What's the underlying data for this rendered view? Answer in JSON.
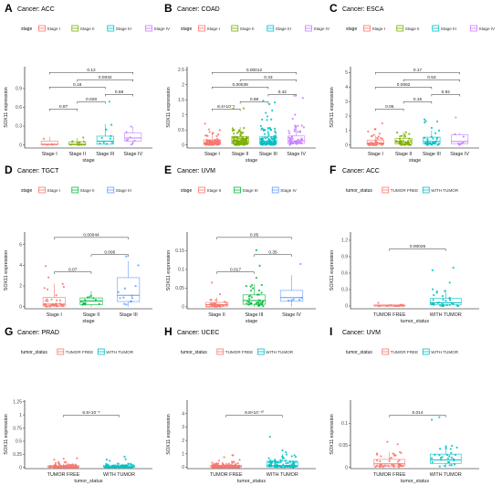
{
  "chart_data": [
    {
      "type": "box",
      "panel": "A",
      "title": "Cancer: ACC",
      "legend_title": "stage",
      "xlabel": "stage",
      "ylabel": "SOX11 expression",
      "ylim": [
        -0.05,
        1.25
      ],
      "yticks": [
        0.0,
        0.3,
        0.6,
        0.9
      ],
      "groups": [
        {
          "name": "Stage I",
          "color": "#F8766D",
          "q1": 0.0,
          "median": 0.01,
          "q3": 0.06,
          "whisker_low": 0.0,
          "whisker_high": 0.13
        },
        {
          "name": "Stage II",
          "color": "#7CAE00",
          "q1": 0.0,
          "median": 0.01,
          "q3": 0.05,
          "whisker_low": 0.0,
          "whisker_high": 0.11
        },
        {
          "name": "Stage III",
          "color": "#00BFC4",
          "q1": 0.01,
          "median": 0.06,
          "q3": 0.14,
          "whisker_low": 0.0,
          "whisker_high": 0.33
        },
        {
          "name": "Stage IV",
          "color": "#C77CFF",
          "q1": 0.06,
          "median": 0.11,
          "q3": 0.19,
          "whisker_low": 0.0,
          "whisker_high": 0.29
        }
      ],
      "comparisons": [
        {
          "a": 0,
          "b": 1,
          "label": "0.87"
        },
        {
          "a": 0,
          "b": 2,
          "label": "0.18"
        },
        {
          "a": 0,
          "b": 3,
          "label": "0.12"
        },
        {
          "a": 1,
          "b": 2,
          "label": "0.028"
        },
        {
          "a": 1,
          "b": 3,
          "label": "0.0032"
        },
        {
          "a": 2,
          "b": 3,
          "label": "0.58"
        }
      ]
    },
    {
      "type": "box",
      "panel": "B",
      "title": "Cancer: COAD",
      "legend_title": "stage",
      "xlabel": "stage",
      "ylabel": "SOX11 expression",
      "ylim": [
        -0.1,
        2.6
      ],
      "yticks": [
        0.0,
        0.5,
        1.0,
        1.5,
        2.0,
        2.5
      ],
      "groups": [
        {
          "name": "Stage I",
          "color": "#F8766D",
          "q1": 0.03,
          "median": 0.08,
          "q3": 0.17,
          "whisker_low": 0.0,
          "whisker_high": 0.38
        },
        {
          "name": "Stage II",
          "color": "#7CAE00",
          "q1": 0.04,
          "median": 0.12,
          "q3": 0.28,
          "whisker_low": 0.0,
          "whisker_high": 0.6
        },
        {
          "name": "Stage III",
          "color": "#00BFC4",
          "q1": 0.04,
          "median": 0.13,
          "q3": 0.27,
          "whisker_low": 0.0,
          "whisker_high": 0.58
        },
        {
          "name": "Stage IV",
          "color": "#C77CFF",
          "q1": 0.05,
          "median": 0.14,
          "q3": 0.3,
          "whisker_low": 0.0,
          "whisker_high": 0.65
        }
      ],
      "comparisons": [
        {
          "a": 0,
          "b": 1,
          "label": "8.4×10⁻⁵"
        },
        {
          "a": 0,
          "b": 2,
          "label": "0.00039"
        },
        {
          "a": 0,
          "b": 3,
          "label": "0.00012"
        },
        {
          "a": 1,
          "b": 2,
          "label": "0.98"
        },
        {
          "a": 1,
          "b": 3,
          "label": "0.43"
        },
        {
          "a": 2,
          "b": 3,
          "label": "0.42"
        }
      ]
    },
    {
      "type": "box",
      "panel": "C",
      "title": "Cancer: ESCA",
      "legend_title": "stage",
      "xlabel": "stage",
      "ylabel": "SOX11 expression",
      "ylim": [
        -0.2,
        5.4
      ],
      "yticks": [
        0,
        1,
        2,
        3,
        4,
        5
      ],
      "groups": [
        {
          "name": "Stage I",
          "color": "#F8766D",
          "q1": 0.05,
          "median": 0.15,
          "q3": 0.35,
          "whisker_low": 0.0,
          "whisker_high": 0.65
        },
        {
          "name": "Stage II",
          "color": "#7CAE00",
          "q1": 0.08,
          "median": 0.2,
          "q3": 0.45,
          "whisker_low": 0.0,
          "whisker_high": 0.9
        },
        {
          "name": "Stage III",
          "color": "#00BFC4",
          "q1": 0.1,
          "median": 0.25,
          "q3": 0.55,
          "whisker_low": 0.0,
          "whisker_high": 1.0
        },
        {
          "name": "Stage IV",
          "color": "#C77CFF",
          "q1": 0.1,
          "median": 0.25,
          "q3": 0.7,
          "whisker_low": 0.0,
          "whisker_high": 0.85
        }
      ],
      "comparisons": [
        {
          "a": 0,
          "b": 1,
          "label": "0.05"
        },
        {
          "a": 0,
          "b": 2,
          "label": "0.0062"
        },
        {
          "a": 0,
          "b": 3,
          "label": "0.17"
        },
        {
          "a": 1,
          "b": 2,
          "label": "0.15"
        },
        {
          "a": 1,
          "b": 3,
          "label": "0.53"
        },
        {
          "a": 2,
          "b": 3,
          "label": "0.92"
        }
      ]
    },
    {
      "type": "box",
      "panel": "D",
      "title": "Cancer: TGCT",
      "legend_title": "stage",
      "xlabel": "stage",
      "ylabel": "SOX11 expression",
      "ylim": [
        -0.2,
        7.2
      ],
      "yticks": [
        0,
        2,
        4,
        6
      ],
      "groups": [
        {
          "name": "Stage I",
          "color": "#F8766D",
          "q1": 0.05,
          "median": 0.25,
          "q3": 0.9,
          "whisker_low": 0.0,
          "whisker_high": 2.2
        },
        {
          "name": "Stage II",
          "color": "#00BA38",
          "q1": 0.2,
          "median": 0.55,
          "q3": 0.85,
          "whisker_low": 0.0,
          "whisker_high": 1.5
        },
        {
          "name": "Stage III",
          "color": "#619CFF",
          "q1": 0.5,
          "median": 1.1,
          "q3": 2.8,
          "whisker_low": 0.0,
          "whisker_high": 4.4
        }
      ],
      "comparisons": [
        {
          "a": 0,
          "b": 1,
          "label": "0.07"
        },
        {
          "a": 0,
          "b": 2,
          "label": "0.00044"
        },
        {
          "a": 1,
          "b": 2,
          "label": "0.095"
        }
      ]
    },
    {
      "type": "box",
      "panel": "E",
      "title": "Cancer: UVM",
      "legend_title": "stage",
      "xlabel": "stage",
      "ylabel": "SOX11 expression",
      "ylim": [
        -0.005,
        0.2
      ],
      "yticks": [
        0.0,
        0.05,
        0.1,
        0.15
      ],
      "groups": [
        {
          "name": "Stage II",
          "color": "#F8766D",
          "q1": 0.002,
          "median": 0.006,
          "q3": 0.012,
          "whisker_low": 0.0,
          "whisker_high": 0.025
        },
        {
          "name": "Stage III",
          "color": "#00BA38",
          "q1": 0.007,
          "median": 0.017,
          "q3": 0.032,
          "whisker_low": 0.0,
          "whisker_high": 0.06
        },
        {
          "name": "Stage IV",
          "color": "#619CFF",
          "q1": 0.015,
          "median": 0.025,
          "q3": 0.044,
          "whisker_low": 0.0,
          "whisker_high": 0.085
        }
      ],
      "comparisons": [
        {
          "a": 0,
          "b": 1,
          "label": "0.017"
        },
        {
          "a": 0,
          "b": 2,
          "label": "0.05"
        },
        {
          "a": 1,
          "b": 2,
          "label": "0.35"
        }
      ]
    },
    {
      "type": "box",
      "panel": "F",
      "title": "Cancer: ACC",
      "legend_title": "tumor_status",
      "xlabel": "tumor_status",
      "ylabel": "SOX11 expression",
      "ylim": [
        -0.05,
        1.35
      ],
      "yticks": [
        0.0,
        0.3,
        0.6,
        0.9,
        1.2
      ],
      "groups": [
        {
          "name": "TUMOR FREE",
          "color": "#F8766D",
          "q1": 0.0,
          "median": 0.005,
          "q3": 0.02,
          "whisker_low": 0.0,
          "whisker_high": 0.04
        },
        {
          "name": "WITH TUMOR",
          "color": "#00BFC4",
          "q1": 0.02,
          "median": 0.06,
          "q3": 0.14,
          "whisker_low": 0.0,
          "whisker_high": 0.3
        }
      ],
      "comparisons": [
        {
          "a": 0,
          "b": 1,
          "label": "0.00026"
        }
      ]
    },
    {
      "type": "box",
      "panel": "G",
      "title": "Cancer: PRAD",
      "legend_title": "tumor_status",
      "xlabel": "tumor_status",
      "ylabel": "SOX11 expression",
      "ylim": [
        -0.02,
        1.28
      ],
      "yticks": [
        0.0,
        0.25,
        0.5,
        0.75,
        1.0,
        1.25
      ],
      "groups": [
        {
          "name": "TUMOR FREE",
          "color": "#F8766D",
          "q1": 0.005,
          "median": 0.015,
          "q3": 0.035,
          "whisker_low": 0.0,
          "whisker_high": 0.07
        },
        {
          "name": "WITH TUMOR",
          "color": "#00BFC4",
          "q1": 0.005,
          "median": 0.02,
          "q3": 0.045,
          "whisker_low": 0.0,
          "whisker_high": 0.09
        }
      ],
      "comparisons": [
        {
          "a": 0,
          "b": 1,
          "label": "6.5×10⁻⁵"
        }
      ]
    },
    {
      "type": "box",
      "panel": "H",
      "title": "Cancer: UCEC",
      "legend_title": "tumor_status",
      "xlabel": "tumor_status",
      "ylabel": "SOX11 expression",
      "ylim": [
        -0.1,
        5.0
      ],
      "yticks": [
        0,
        1,
        2,
        3,
        4
      ],
      "groups": [
        {
          "name": "TUMOR FREE",
          "color": "#F8766D",
          "q1": 0.01,
          "median": 0.04,
          "q3": 0.15,
          "whisker_low": 0.0,
          "whisker_high": 0.35
        },
        {
          "name": "WITH TUMOR",
          "color": "#00BFC4",
          "q1": 0.03,
          "median": 0.12,
          "q3": 0.45,
          "whisker_low": 0.0,
          "whisker_high": 1.0
        }
      ],
      "comparisons": [
        {
          "a": 0,
          "b": 1,
          "label": "9.8×10⁻¹⁰"
        }
      ]
    },
    {
      "type": "box",
      "panel": "I",
      "title": "Cancer: UVM",
      "legend_title": "tumor_status",
      "xlabel": "tumor_status",
      "ylabel": "SOX11 expression",
      "ylim": [
        -0.003,
        0.153
      ],
      "yticks": [
        0.0,
        0.05,
        0.1
      ],
      "groups": [
        {
          "name": "TUMOR FREE",
          "color": "#F8766D",
          "q1": 0.003,
          "median": 0.008,
          "q3": 0.018,
          "whisker_low": 0.0,
          "whisker_high": 0.035
        },
        {
          "name": "WITH TUMOR",
          "color": "#00BFC4",
          "q1": 0.009,
          "median": 0.017,
          "q3": 0.03,
          "whisker_low": 0.0,
          "whisker_high": 0.05
        }
      ],
      "comparisons": [
        {
          "a": 0,
          "b": 1,
          "label": "0.014"
        }
      ]
    }
  ]
}
